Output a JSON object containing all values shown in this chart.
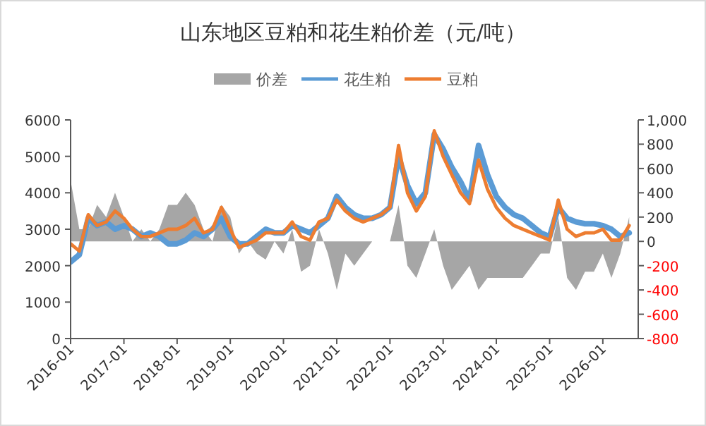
{
  "chart_data": {
    "type": "line",
    "title": "山东地区豆粕和花生粕价差（元/吨）",
    "legend": "top",
    "grid": false,
    "x": [
      "2016-01",
      "2016-03",
      "2016-05",
      "2016-07",
      "2016-09",
      "2016-11",
      "2017-01",
      "2017-03",
      "2017-05",
      "2017-07",
      "2017-09",
      "2017-11",
      "2018-01",
      "2018-03",
      "2018-05",
      "2018-07",
      "2018-09",
      "2018-11",
      "2019-01",
      "2019-03",
      "2019-05",
      "2019-07",
      "2019-09",
      "2019-11",
      "2020-01",
      "2020-03",
      "2020-05",
      "2020-07",
      "2020-09",
      "2020-11",
      "2021-01",
      "2021-03",
      "2021-05",
      "2021-07",
      "2021-09",
      "2021-11",
      "2022-01",
      "2022-03",
      "2022-05",
      "2022-07",
      "2022-09",
      "2022-11",
      "2023-01",
      "2023-03",
      "2023-05",
      "2023-07",
      "2023-09",
      "2023-11",
      "2024-01",
      "2024-03",
      "2024-05",
      "2024-07",
      "2024-09",
      "2024-11",
      "2025-01",
      "2025-03",
      "2025-05",
      "2025-07",
      "2025-09",
      "2025-11",
      "2026-01",
      "2026-03",
      "2026-05",
      "2026-07"
    ],
    "series": [
      {
        "name": "价差",
        "type": "area",
        "axis": "y2",
        "color": "#a6a6a6",
        "values": [
          500,
          100,
          100,
          300,
          200,
          400,
          200,
          0,
          100,
          0,
          100,
          300,
          300,
          400,
          300,
          100,
          0,
          300,
          200,
          -100,
          0,
          -100,
          -150,
          0,
          -100,
          100,
          -250,
          -200,
          100,
          -100,
          -400,
          -100,
          -200,
          -100,
          0,
          0,
          0,
          300,
          -200,
          -300,
          -100,
          100,
          -200,
          -400,
          -300,
          -200,
          -400,
          -300,
          -300,
          -300,
          -300,
          -300,
          -200,
          -100,
          -100,
          200,
          -300,
          -400,
          -250,
          -250,
          -100,
          -300,
          -100,
          200
        ]
      },
      {
        "name": "花生粕",
        "color": "#5b9bd5",
        "values": [
          2100,
          2300,
          3300,
          3100,
          3200,
          3000,
          3100,
          3000,
          2800,
          2900,
          2800,
          2600,
          2600,
          2700,
          2900,
          2800,
          3000,
          3300,
          2800,
          2600,
          2600,
          2800,
          3000,
          2900,
          2900,
          3100,
          3000,
          2900,
          3100,
          3300,
          3900,
          3600,
          3400,
          3300,
          3300,
          3400,
          3600,
          5000,
          4200,
          3700,
          4000,
          5600,
          5200,
          4700,
          4300,
          3800,
          5300,
          4500,
          3900,
          3600,
          3400,
          3300,
          3100,
          2900,
          2800,
          3600,
          3300,
          3200,
          3150,
          3150,
          3100,
          3000,
          2800,
          2900
        ]
      },
      {
        "name": "豆粕",
        "color": "#ed7d31",
        "values": [
          2600,
          2400,
          3400,
          3100,
          3200,
          3500,
          3300,
          3000,
          2800,
          2800,
          2900,
          3000,
          3000,
          3100,
          3300,
          2900,
          3000,
          3600,
          3000,
          2500,
          2600,
          2700,
          2900,
          2900,
          2900,
          3200,
          2800,
          2700,
          3200,
          3300,
          3800,
          3500,
          3300,
          3200,
          3300,
          3400,
          3600,
          5300,
          4000,
          3500,
          3900,
          5700,
          5000,
          4500,
          4000,
          3700,
          4900,
          4100,
          3600,
          3300,
          3100,
          3000,
          2900,
          2800,
          2700,
          3800,
          3000,
          2800,
          2900,
          2900,
          3000,
          2700,
          2700,
          3100
        ]
      }
    ],
    "xlim": [
      "2016-01",
      "2026-09"
    ],
    "xticks": [
      "2016-01",
      "2017-01",
      "2018-01",
      "2019-01",
      "2020-01",
      "2021-01",
      "2022-01",
      "2023-01",
      "2024-01",
      "2025-01",
      "2026-01"
    ],
    "ylim": [
      0,
      6000
    ],
    "yticks": [
      0,
      1000,
      2000,
      3000,
      4000,
      5000,
      6000
    ],
    "y2lim": [
      -800,
      1000
    ],
    "y2ticks": [
      {
        "value": -800,
        "label": "-800"
      },
      {
        "value": -600,
        "label": "-600"
      },
      {
        "value": -400,
        "label": "-400"
      },
      {
        "value": -200,
        "label": "-200"
      },
      {
        "value": 0,
        "label": "0"
      },
      {
        "value": 200,
        "label": "200"
      },
      {
        "value": 400,
        "label": "400"
      },
      {
        "value": 600,
        "label": "600"
      },
      {
        "value": 800,
        "label": "800"
      },
      {
        "value": 1000,
        "label": "1,000"
      }
    ]
  }
}
